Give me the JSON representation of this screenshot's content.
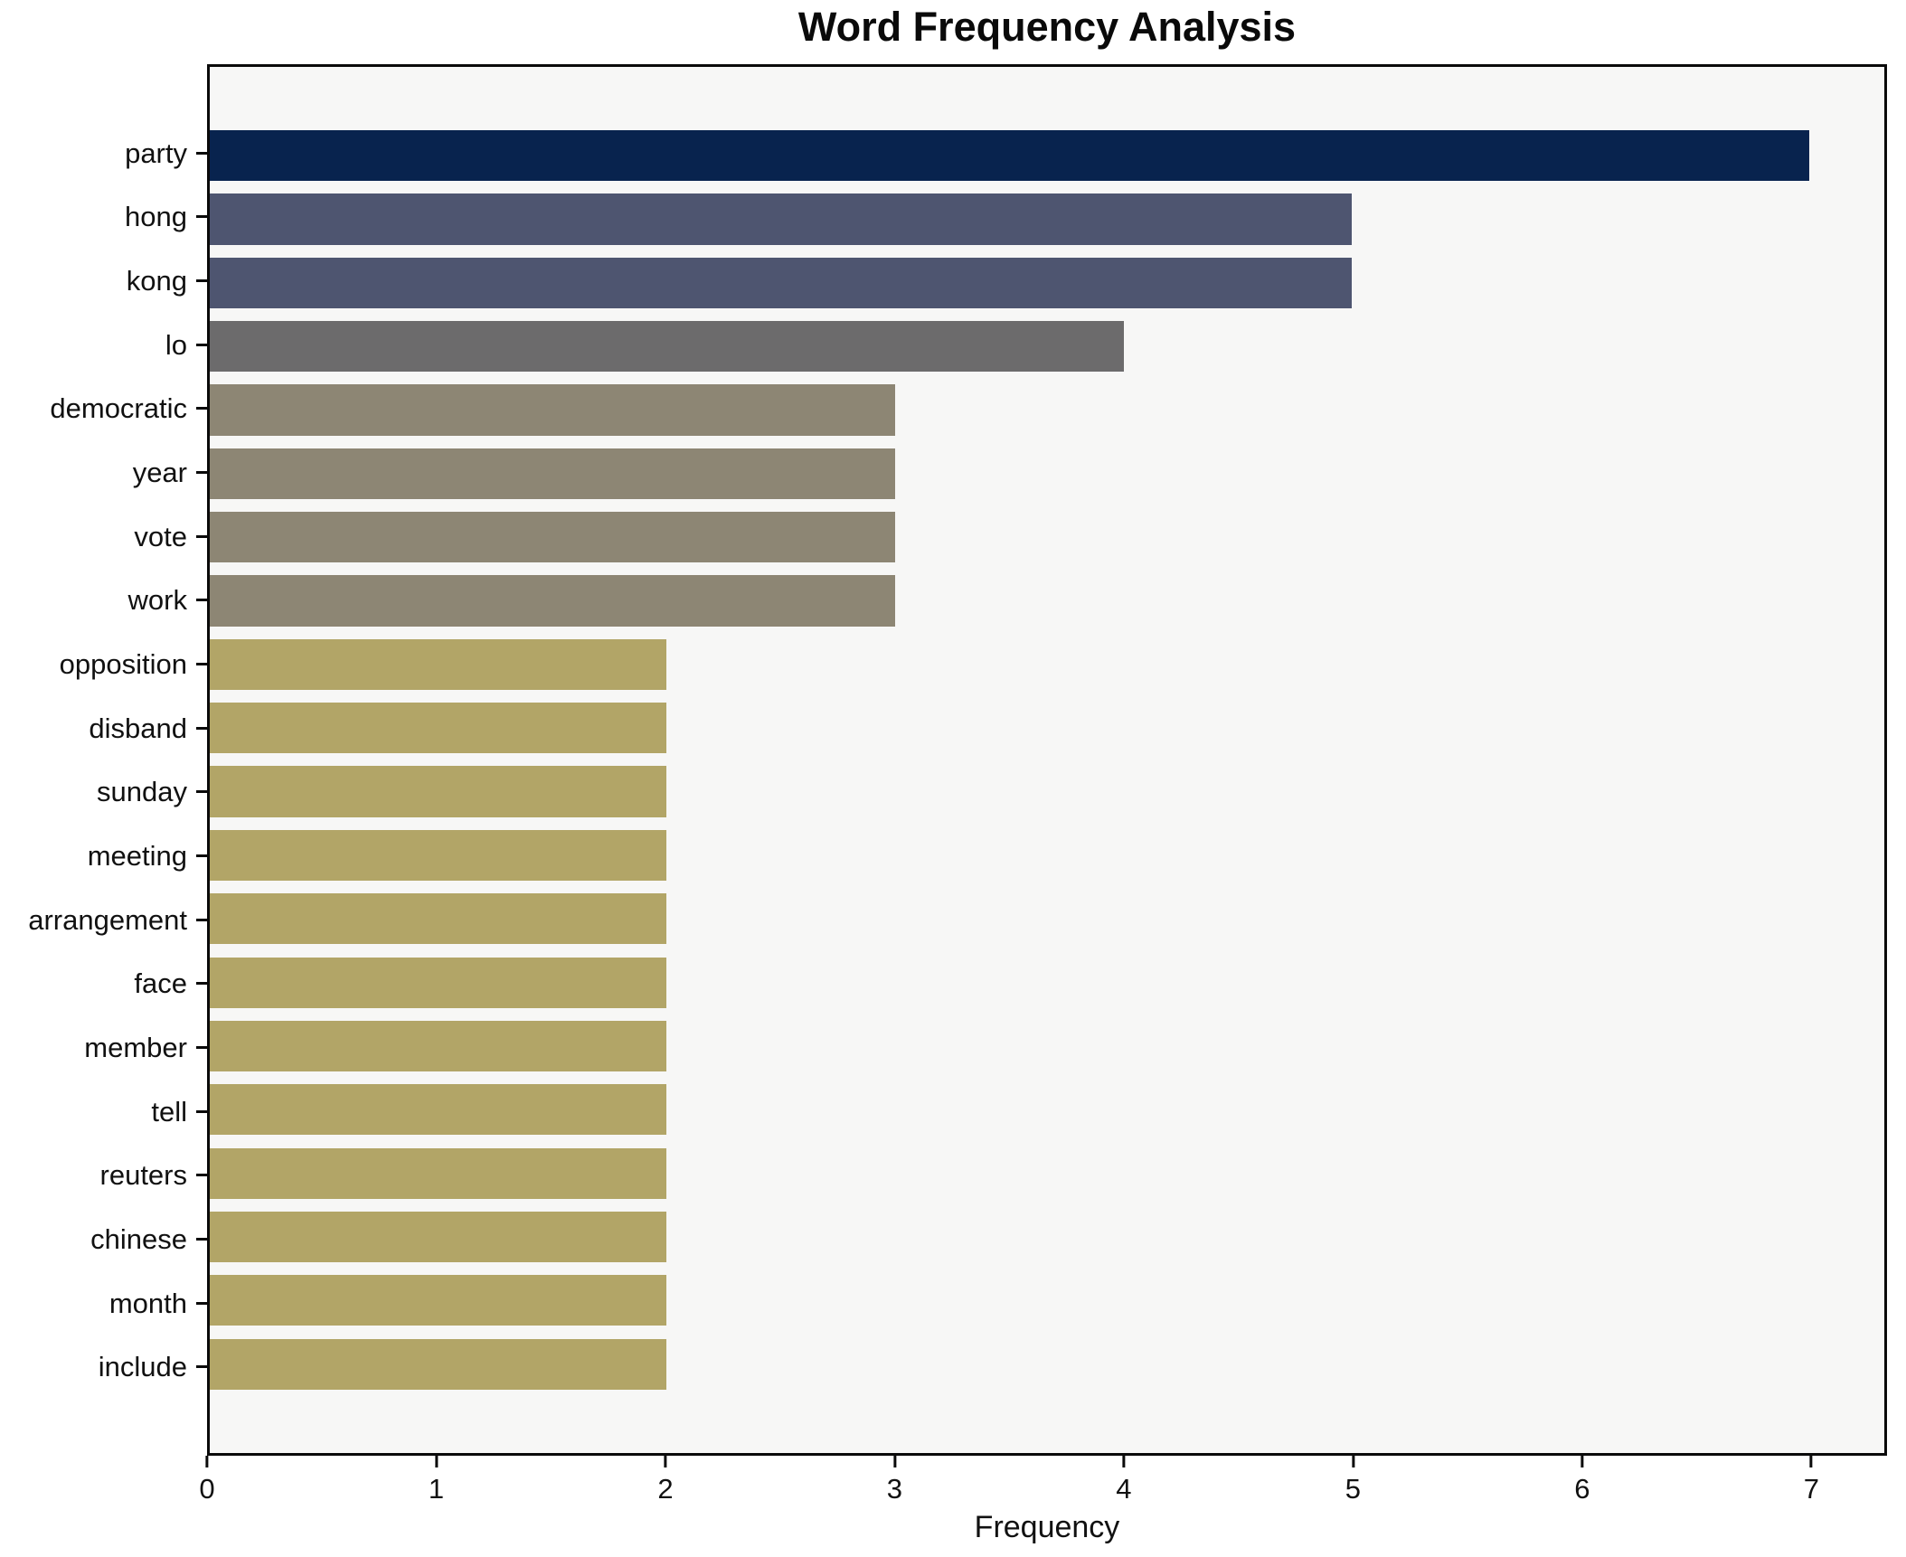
{
  "figure": {
    "background": "#ffffff",
    "plot_background": "#f7f7f6",
    "spine_color": "#0a0a0a"
  },
  "chart_data": {
    "type": "bar",
    "orientation": "horizontal",
    "title": "Word Frequency Analysis",
    "xlabel": "Frequency",
    "ylabel": "",
    "categories": [
      "party",
      "hong",
      "kong",
      "lo",
      "democratic",
      "year",
      "vote",
      "work",
      "opposition",
      "disband",
      "sunday",
      "meeting",
      "arrangement",
      "face",
      "member",
      "tell",
      "reuters",
      "chinese",
      "month",
      "include"
    ],
    "values": [
      7,
      5,
      5,
      4,
      3,
      3,
      3,
      3,
      2,
      2,
      2,
      2,
      2,
      2,
      2,
      2,
      2,
      2,
      2,
      2
    ],
    "bar_colors": [
      "#08234e",
      "#4e5570",
      "#4e5570",
      "#6c6b6c",
      "#8d8674",
      "#8d8674",
      "#8d8674",
      "#8d8674",
      "#b2a567",
      "#b2a567",
      "#b2a567",
      "#b2a567",
      "#b2a567",
      "#b2a567",
      "#b2a567",
      "#b2a567",
      "#b2a567",
      "#b2a567",
      "#b2a567",
      "#b2a567"
    ],
    "xlim": [
      0,
      7.33
    ],
    "xticks": [
      0,
      1,
      2,
      3,
      4,
      5,
      6,
      7
    ],
    "grid": false,
    "legend": null
  }
}
